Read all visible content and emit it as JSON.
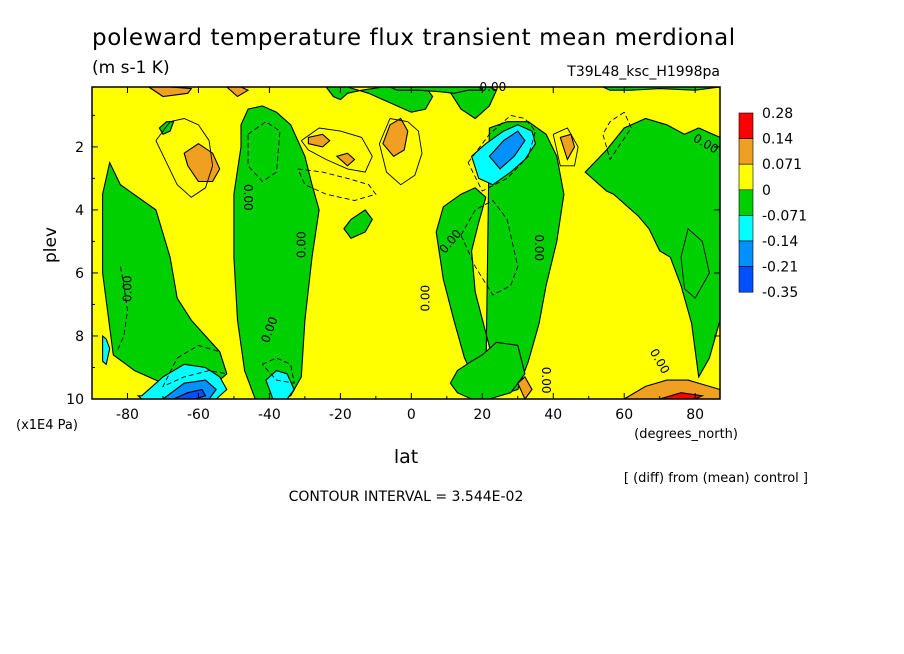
{
  "chart_data": {
    "type": "heatmap",
    "title": "poleward temperature flux transient mean merdional",
    "units": "(m s-1 K)",
    "run_id": "T39L48_ksc_H1998pa",
    "xlabel": "lat",
    "ylabel": "plev",
    "x_units": "(degrees_north)",
    "y_units": "(x1E4 Pa)",
    "xlim": [
      -90,
      87
    ],
    "ylim": [
      10,
      0.1
    ],
    "x_ticks": [
      -80,
      -60,
      -40,
      -20,
      0,
      20,
      40,
      60,
      80
    ],
    "x_tick_labels": [
      "-80",
      "-60",
      "-40",
      "-20",
      "0",
      "20",
      "40",
      "60",
      "80"
    ],
    "y_ticks": [
      2,
      4,
      6,
      8,
      10
    ],
    "y_tick_labels": [
      "2",
      "4",
      "6",
      "8",
      "10"
    ],
    "contour_interval_text": "CONTOUR INTERVAL = 3.544E-02",
    "note": "[ (diff) from (mean) control ]",
    "contour_label": "0.00",
    "legend": {
      "placement": "right",
      "levels": [
        "0.28",
        "0.14",
        "0.071",
        "0",
        "-0.071",
        "-0.14",
        "-0.21",
        "-0.35"
      ],
      "colors": [
        "#ff0000",
        "#f0a020",
        "#ffff00",
        "#00d000",
        "#00ffff",
        "#0090ff",
        "#0050ff"
      ]
    },
    "colors": {
      "pos_weak": "#ffff00",
      "pos_mid": "#f0a020",
      "pos_strong": "#ff0000",
      "neg_weak": "#00d000",
      "neg_mid": "#00ffff",
      "neg_strong": "#0090ff",
      "neg_max": "#0050ff"
    },
    "regions": [
      {
        "level": "neg_weak",
        "lat": [
          -85,
          -82,
          -72,
          -68,
          -66,
          -62,
          -58,
          -54,
          -52,
          -56,
          -60,
          -66,
          -72,
          -78,
          -84,
          -87,
          -87
        ],
        "plev": [
          2.5,
          3.2,
          4,
          5.5,
          6.8,
          7.5,
          8,
          8.5,
          9.2,
          9.6,
          9.5,
          9.7,
          9.4,
          9.1,
          8.6,
          6,
          3.5
        ]
      },
      {
        "level": "neg_weak",
        "lat": [
          -48,
          -46,
          -42,
          -38,
          -34,
          -30,
          -28,
          -26,
          -28,
          -30,
          -31,
          -34,
          -38,
          -44,
          -47,
          -49,
          -50,
          -50,
          -48
        ],
        "plev": [
          1.3,
          0.8,
          0.7,
          0.9,
          1.3,
          2.3,
          3.2,
          4,
          5.5,
          7.5,
          9.3,
          9.9,
          10,
          10,
          9.1,
          7.5,
          5.5,
          3.5,
          2
        ]
      },
      {
        "level": "neg_weak",
        "lat": [
          -24,
          -18,
          -12,
          -6,
          0,
          4,
          6,
          4,
          2,
          -2,
          -8,
          -14,
          -18,
          -20,
          -22,
          -24
        ],
        "plev": [
          0.1,
          0.1,
          0.3,
          0.6,
          0.9,
          0.8,
          0.4,
          0.1,
          0.1,
          0.1,
          0.1,
          0.2,
          0.3,
          0.5,
          0.4,
          0.1
        ]
      },
      {
        "level": "neg_weak",
        "lat": [
          10,
          14,
          18,
          22,
          24,
          22,
          18,
          14,
          10
        ],
        "plev": [
          0.1,
          0.8,
          1.1,
          0.7,
          0.2,
          0.1,
          0.1,
          0.1,
          0.1
        ]
      },
      {
        "level": "neg_weak",
        "lat": [
          22,
          27,
          33,
          38,
          41,
          43,
          41,
          38,
          36,
          33,
          30,
          27,
          24,
          21,
          18,
          17,
          19,
          21,
          18,
          14,
          9,
          7,
          9,
          12,
          15,
          18,
          21,
          22
        ],
        "plev": [
          1.4,
          1.2,
          1.2,
          1.6,
          2.3,
          3.5,
          5,
          6.4,
          7.6,
          8.8,
          9.7,
          9.8,
          9.2,
          7.9,
          6.6,
          5.3,
          4.4,
          3.6,
          3.3,
          3.5,
          3.9,
          4.7,
          6.2,
          7.5,
          8.7,
          9.4,
          9.5,
          1.4
        ]
      },
      {
        "level": "neg_weak",
        "lat": [
          20,
          24,
          30,
          32,
          28,
          22,
          17,
          13,
          11,
          13,
          17,
          20
        ],
        "plev": [
          8.6,
          8.2,
          8.3,
          9.2,
          9.8,
          10,
          10,
          9.8,
          9.5,
          9.1,
          8.8,
          8.6
        ]
      },
      {
        "level": "neg_weak",
        "lat": [
          -17,
          -13,
          -11,
          -13,
          -17,
          -19,
          -17
        ],
        "plev": [
          4.3,
          4,
          4.3,
          4.7,
          4.9,
          4.6,
          4.3
        ]
      },
      {
        "level": "neg_weak",
        "lat": [
          -69,
          -67,
          -68,
          -70,
          -71,
          -69
        ],
        "plev": [
          1.2,
          1.2,
          1.5,
          1.6,
          1.4,
          1.2
        ]
      },
      {
        "level": "neg_weak",
        "lat": [
          49,
          55,
          60,
          66,
          72,
          77,
          81,
          87,
          87,
          84,
          81,
          79,
          76,
          73,
          70,
          67,
          64,
          61,
          59,
          57,
          55,
          53,
          51,
          49,
          49
        ],
        "plev": [
          2.8,
          2.1,
          1.4,
          1.1,
          1.3,
          1.6,
          1.4,
          1.7,
          7.5,
          8.7,
          9.3,
          7.6,
          6.4,
          5.5,
          5.3,
          4.6,
          4.2,
          3.9,
          3.7,
          3.5,
          3.4,
          3.2,
          3,
          2.8,
          2.8
        ]
      },
      {
        "level": "neg_weak",
        "lat": [
          -6,
          0,
          6,
          10,
          14,
          19,
          20,
          16,
          12,
          8,
          2,
          -4,
          -6
        ],
        "plev": [
          0.1,
          0.1,
          0.1,
          0.1,
          0.1,
          0.1,
          0.2,
          0.2,
          0.3,
          0.25,
          0.2,
          0.2,
          0.1
        ]
      },
      {
        "level": "neg_weak",
        "lat": [
          54,
          62,
          70,
          78,
          87,
          87,
          80,
          70,
          62,
          56,
          54
        ],
        "plev": [
          0.1,
          0.1,
          0.1,
          0.1,
          0.1,
          0.1,
          0.2,
          0.15,
          0.2,
          0.2,
          0.1
        ]
      },
      {
        "level": "neg_mid",
        "lat": [
          -76,
          -70,
          -64,
          -58,
          -54,
          -52,
          -55,
          -62,
          -70,
          -76,
          -77
        ],
        "plev": [
          9.9,
          9.3,
          8.9,
          9,
          9.3,
          9.7,
          10,
          10,
          10,
          10,
          9.9
        ]
      },
      {
        "level": "neg_mid",
        "lat": [
          -41,
          -38,
          -35,
          -33,
          -35,
          -39,
          -41
        ],
        "plev": [
          9.4,
          9.1,
          9.2,
          9.7,
          10,
          10,
          9.4
        ]
      },
      {
        "level": "neg_mid",
        "lat": [
          17,
          21,
          26,
          30,
          34,
          35,
          32,
          28,
          23,
          19,
          17
        ],
        "plev": [
          2.3,
          1.9,
          1.5,
          1.3,
          1.5,
          1.9,
          2.4,
          2.8,
          3.2,
          3,
          2.3
        ]
      },
      {
        "level": "neg_mid",
        "lat": [
          -87,
          -86,
          -85,
          -86,
          -87
        ],
        "plev": [
          8,
          8.1,
          8.4,
          8.9,
          8.8
        ]
      },
      {
        "level": "neg_strong",
        "lat": [
          -70,
          -64,
          -58,
          -55,
          -57,
          -63,
          -70
        ],
        "plev": [
          10,
          9.5,
          9.4,
          9.7,
          10,
          10,
          10
        ]
      },
      {
        "level": "neg_strong",
        "lat": [
          22,
          26,
          30,
          32,
          29,
          25,
          22
        ],
        "plev": [
          2.3,
          1.8,
          1.5,
          1.8,
          2.3,
          2.7,
          2.3
        ]
      },
      {
        "level": "neg_max",
        "lat": [
          -67,
          -63,
          -59,
          -58,
          -61,
          -66,
          -67
        ],
        "plev": [
          10,
          9.8,
          9.7,
          9.9,
          10,
          10,
          10
        ]
      },
      {
        "level": "pos_mid",
        "lat": [
          -64,
          -60,
          -56,
          -54,
          -56,
          -60,
          -63,
          -64
        ],
        "plev": [
          2.2,
          1.9,
          2.2,
          2.7,
          3.1,
          3.1,
          2.6,
          2.2
        ]
      },
      {
        "level": "pos_mid",
        "lat": [
          -6,
          -3,
          -1,
          -2,
          -5,
          -8,
          -6
        ],
        "plev": [
          1.3,
          1.1,
          1.5,
          2.1,
          2.3,
          1.9,
          1.3
        ]
      },
      {
        "level": "pos_mid",
        "lat": [
          -29,
          -25,
          -23,
          -25,
          -29,
          -29
        ],
        "plev": [
          1.7,
          1.6,
          1.8,
          2,
          1.9,
          1.7
        ]
      },
      {
        "level": "pos_mid",
        "lat": [
          -21,
          -18,
          -16,
          -18,
          -21
        ],
        "plev": [
          2.3,
          2.2,
          2.4,
          2.6,
          2.3
        ]
      },
      {
        "level": "pos_mid",
        "lat": [
          42,
          45,
          46,
          44,
          42
        ],
        "plev": [
          1.7,
          1.6,
          2,
          2.4,
          1.7
        ]
      },
      {
        "level": "pos_mid",
        "lat": [
          -74,
          -68,
          -62,
          -63,
          -70,
          -74
        ],
        "plev": [
          0.1,
          0.1,
          0.15,
          0.3,
          0.4,
          0.1
        ]
      },
      {
        "level": "pos_mid",
        "lat": [
          -52,
          -48,
          -46,
          -49,
          -52
        ],
        "plev": [
          0.1,
          0.1,
          0.2,
          0.4,
          0.1
        ]
      },
      {
        "level": "pos_mid",
        "lat": [
          60,
          66,
          72,
          78,
          84,
          87,
          87,
          80,
          70,
          62,
          60
        ],
        "plev": [
          10,
          9.6,
          9.4,
          9.4,
          9.6,
          9.7,
          10,
          10,
          10,
          10,
          10
        ]
      },
      {
        "level": "pos_mid",
        "lat": [
          30,
          32,
          34,
          32,
          30
        ],
        "plev": [
          9.5,
          9.3,
          9.7,
          10,
          9.5
        ]
      },
      {
        "level": "pos_strong",
        "lat": [
          70,
          76,
          82,
          80,
          74,
          70
        ],
        "plev": [
          10,
          9.8,
          9.9,
          10,
          10,
          10
        ]
      }
    ],
    "contours": [
      {
        "style": "solid",
        "lat": [
          -72,
          -68,
          -64,
          -60,
          -57,
          -56,
          -58,
          -62,
          -66,
          -69,
          -72
        ],
        "plev": [
          1.8,
          1.2,
          1.1,
          1.3,
          1.8,
          2.6,
          3.3,
          3.6,
          3.2,
          2.5,
          1.8
        ]
      },
      {
        "style": "solid",
        "lat": [
          -1,
          2,
          3,
          1,
          -3,
          -7,
          -9,
          -6,
          -1
        ],
        "plev": [
          1.2,
          1.5,
          2.2,
          2.9,
          3.2,
          2.8,
          1.9,
          1.1,
          1.2
        ]
      },
      {
        "style": "solid",
        "lat": [
          -31,
          -26,
          -20,
          -14,
          -11,
          -13,
          -18,
          -24,
          -29,
          -31
        ],
        "plev": [
          1.8,
          1.4,
          1.5,
          1.7,
          2.3,
          2.8,
          2.7,
          2.4,
          2.1,
          1.8
        ]
      },
      {
        "style": "solid",
        "lat": [
          40,
          44,
          47,
          46,
          42,
          40
        ],
        "plev": [
          1.6,
          1.4,
          2,
          2.6,
          2.6,
          1.6
        ]
      },
      {
        "style": "solid",
        "lat": [
          76,
          78,
          82,
          84,
          80,
          77,
          76
        ],
        "plev": [
          5.5,
          4.6,
          5,
          6,
          6.8,
          6.5,
          5.5
        ]
      },
      {
        "style": "dashed",
        "lat": [
          -46,
          -41,
          -37,
          -38,
          -42,
          -46,
          -46
        ],
        "plev": [
          1.6,
          1.2,
          1.5,
          2.8,
          3.1,
          2.6,
          1.6
        ]
      },
      {
        "style": "dashed",
        "lat": [
          -32,
          -25,
          -18,
          -12,
          -10,
          -16,
          -24,
          -30,
          -32
        ],
        "plev": [
          2.7,
          2.8,
          3,
          3.2,
          3.5,
          3.7,
          3.5,
          3.2,
          2.7
        ]
      },
      {
        "style": "dashed",
        "lat": [
          -82,
          -81,
          -80,
          -81,
          -83
        ],
        "plev": [
          5.8,
          6.4,
          7.2,
          8,
          8.5
        ]
      },
      {
        "style": "dashed",
        "lat": [
          14,
          18,
          23,
          27,
          30,
          28,
          23,
          18,
          14
        ],
        "plev": [
          4.8,
          4,
          3.7,
          4.3,
          5.8,
          6.4,
          6.7,
          5.8,
          4.8
        ]
      },
      {
        "style": "dashed",
        "lat": [
          60,
          56,
          54,
          56,
          62,
          60
        ],
        "plev": [
          0.9,
          1.2,
          1.6,
          2.4,
          1.4,
          0.9
        ]
      },
      {
        "style": "dashed",
        "lat": [
          -66,
          -60,
          -54,
          -52,
          -57,
          -64,
          -70,
          -66
        ],
        "plev": [
          8.7,
          8.3,
          8.5,
          9.2,
          9.1,
          9.3,
          9.6,
          8.7
        ]
      },
      {
        "style": "dashed",
        "lat": [
          -42,
          -38,
          -34,
          -33,
          -38,
          -42
        ],
        "plev": [
          8.9,
          8.7,
          8.9,
          9.5,
          9.4,
          8.9
        ]
      },
      {
        "style": "dashed",
        "lat": [
          16,
          22,
          28,
          32,
          35,
          33,
          27,
          20,
          16
        ],
        "plev": [
          2.5,
          1.6,
          1,
          1.1,
          1.5,
          2.3,
          3,
          3.4,
          2.5
        ]
      }
    ],
    "zero_labels": [
      {
        "lat": 23,
        "plev": 0.1,
        "rotate": 0
      },
      {
        "lat": 83,
        "plev": 1.9,
        "rotate": 30
      },
      {
        "lat": -46,
        "plev": 3.6,
        "rotate": 90
      },
      {
        "lat": -31,
        "plev": 5.1,
        "rotate": -90
      },
      {
        "lat": 11,
        "plev": 5,
        "rotate": -50
      },
      {
        "lat": 36,
        "plev": 5.2,
        "rotate": 90
      },
      {
        "lat": 4,
        "plev": 6.8,
        "rotate": -90
      },
      {
        "lat": -80,
        "plev": 6.5,
        "rotate": -90
      },
      {
        "lat": -40,
        "plev": 7.8,
        "rotate": -70
      },
      {
        "lat": 70,
        "plev": 8.8,
        "rotate": 60
      },
      {
        "lat": 38,
        "plev": 9.4,
        "rotate": 90
      }
    ]
  }
}
